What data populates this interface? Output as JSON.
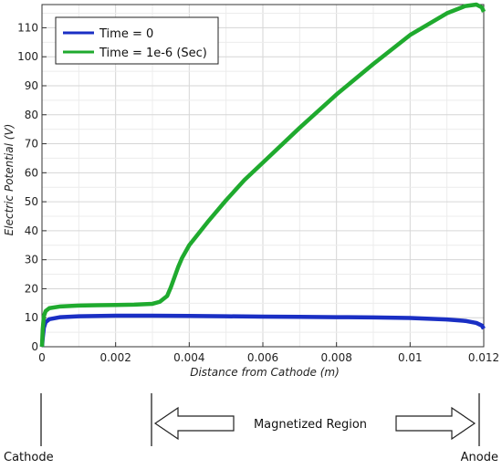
{
  "chart_data": {
    "type": "line",
    "xlabel": "Distance from Cathode (m)",
    "ylabel": "Electric Potential (V)",
    "xlim": [
      0,
      0.012
    ],
    "ylim": [
      0,
      118
    ],
    "x_ticks": [
      0,
      0.002,
      0.004,
      0.006,
      0.008,
      0.01,
      0.012
    ],
    "x_tick_labels": [
      "0",
      "0.002",
      "0.004",
      "0.006",
      "0.008",
      "0.01",
      "0.012"
    ],
    "y_ticks": [
      0,
      10,
      20,
      30,
      40,
      50,
      60,
      70,
      80,
      90,
      100,
      110
    ],
    "y_tick_labels": [
      "0",
      "10",
      "20",
      "30",
      "40",
      "50",
      "60",
      "70",
      "80",
      "90",
      "100",
      "110"
    ],
    "grid": true,
    "legend_position": "top-left",
    "series": [
      {
        "name": "Time = 0",
        "color": "#1a2fc4",
        "x": [
          0,
          2e-05,
          5e-05,
          0.0001,
          0.0002,
          0.0005,
          0.001,
          0.002,
          0.003,
          0.004,
          0.005,
          0.006,
          0.007,
          0.008,
          0.009,
          0.01,
          0.011,
          0.0115,
          0.0118,
          0.01195,
          0.012
        ],
        "y": [
          0,
          3,
          6.5,
          8.5,
          9.5,
          10.2,
          10.5,
          10.7,
          10.7,
          10.6,
          10.5,
          10.4,
          10.3,
          10.2,
          10.1,
          9.9,
          9.4,
          8.9,
          8.2,
          7.3,
          6.2
        ]
      },
      {
        "name": "Time = 1e-6 (Sec)",
        "color": "#1faa2e",
        "x": [
          0,
          2e-05,
          5e-05,
          0.0001,
          0.0002,
          0.0005,
          0.001,
          0.0015,
          0.002,
          0.0025,
          0.003,
          0.0032,
          0.0034,
          0.0035,
          0.0036,
          0.0037,
          0.0038,
          0.004,
          0.0045,
          0.005,
          0.0055,
          0.006,
          0.007,
          0.008,
          0.009,
          0.01,
          0.011,
          0.0115,
          0.0118,
          0.01195,
          0.012
        ],
        "y": [
          0,
          6,
          10.5,
          12.3,
          13.3,
          13.9,
          14.2,
          14.3,
          14.4,
          14.5,
          14.8,
          15.5,
          17.5,
          20.5,
          24,
          27.5,
          30.5,
          35,
          43,
          50.5,
          57.5,
          63.5,
          75.5,
          87,
          97.5,
          107.5,
          115,
          117.5,
          118,
          117,
          115.5
        ]
      }
    ]
  },
  "annotation": {
    "cathode_label": "Cathode",
    "anode_label": "Anode",
    "region_label": "Magnetized Region"
  }
}
